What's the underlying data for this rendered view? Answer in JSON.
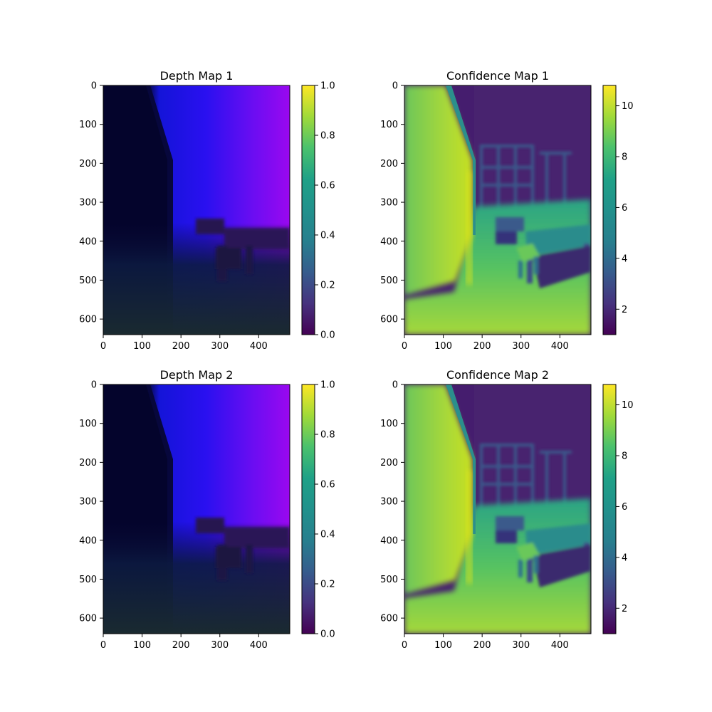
{
  "chart_data": [
    {
      "type": "heatmap",
      "title": "Depth Map 1",
      "xlim": [
        0,
        480
      ],
      "ylim": [
        640,
        0
      ],
      "x_ticks": [
        0,
        100,
        200,
        300,
        400
      ],
      "y_ticks": [
        0,
        100,
        200,
        300,
        400,
        500,
        600
      ],
      "colorbar": {
        "colormap": "viridis",
        "range": [
          0.0,
          1.0
        ],
        "ticks": [
          "0.0",
          "0.2",
          "0.4",
          "0.6",
          "0.8",
          "1.0"
        ]
      },
      "image": "rgb depth visualization (dark navy at left and bottom, blue center, violet top-right, dark furniture silhouettes)"
    },
    {
      "type": "heatmap",
      "title": "Confidence Map 1",
      "xlim": [
        0,
        480
      ],
      "ylim": [
        640,
        0
      ],
      "x_ticks": [
        0,
        100,
        200,
        300,
        400
      ],
      "y_ticks": [
        0,
        100,
        200,
        300,
        400,
        500,
        600
      ],
      "colorbar": {
        "colormap": "viridis",
        "range": [
          1.0,
          10.8
        ],
        "ticks": [
          "2",
          "4",
          "6",
          "8",
          "10"
        ]
      },
      "image": "viridis confidence (high on left wall and floor, low on back wall)"
    },
    {
      "type": "heatmap",
      "title": "Depth Map 2",
      "xlim": [
        0,
        480
      ],
      "ylim": [
        640,
        0
      ],
      "x_ticks": [
        0,
        100,
        200,
        300,
        400
      ],
      "y_ticks": [
        0,
        100,
        200,
        300,
        400,
        500,
        600
      ],
      "colorbar": {
        "colormap": "viridis",
        "range": [
          0.0,
          1.0
        ],
        "ticks": [
          "0.0",
          "0.2",
          "0.4",
          "0.6",
          "0.8",
          "1.0"
        ]
      },
      "image": "rgb depth visualization (same scene as Depth Map 1)"
    },
    {
      "type": "heatmap",
      "title": "Confidence Map 2",
      "xlim": [
        0,
        480
      ],
      "ylim": [
        640,
        0
      ],
      "x_ticks": [
        0,
        100,
        200,
        300,
        400
      ],
      "y_ticks": [
        0,
        100,
        200,
        300,
        400,
        500,
        600
      ],
      "colorbar": {
        "colormap": "viridis",
        "range": [
          1.0,
          10.8
        ],
        "ticks": [
          "2",
          "4",
          "6",
          "8",
          "10"
        ]
      },
      "image": "viridis confidence (same scene as Confidence Map 1)"
    }
  ]
}
